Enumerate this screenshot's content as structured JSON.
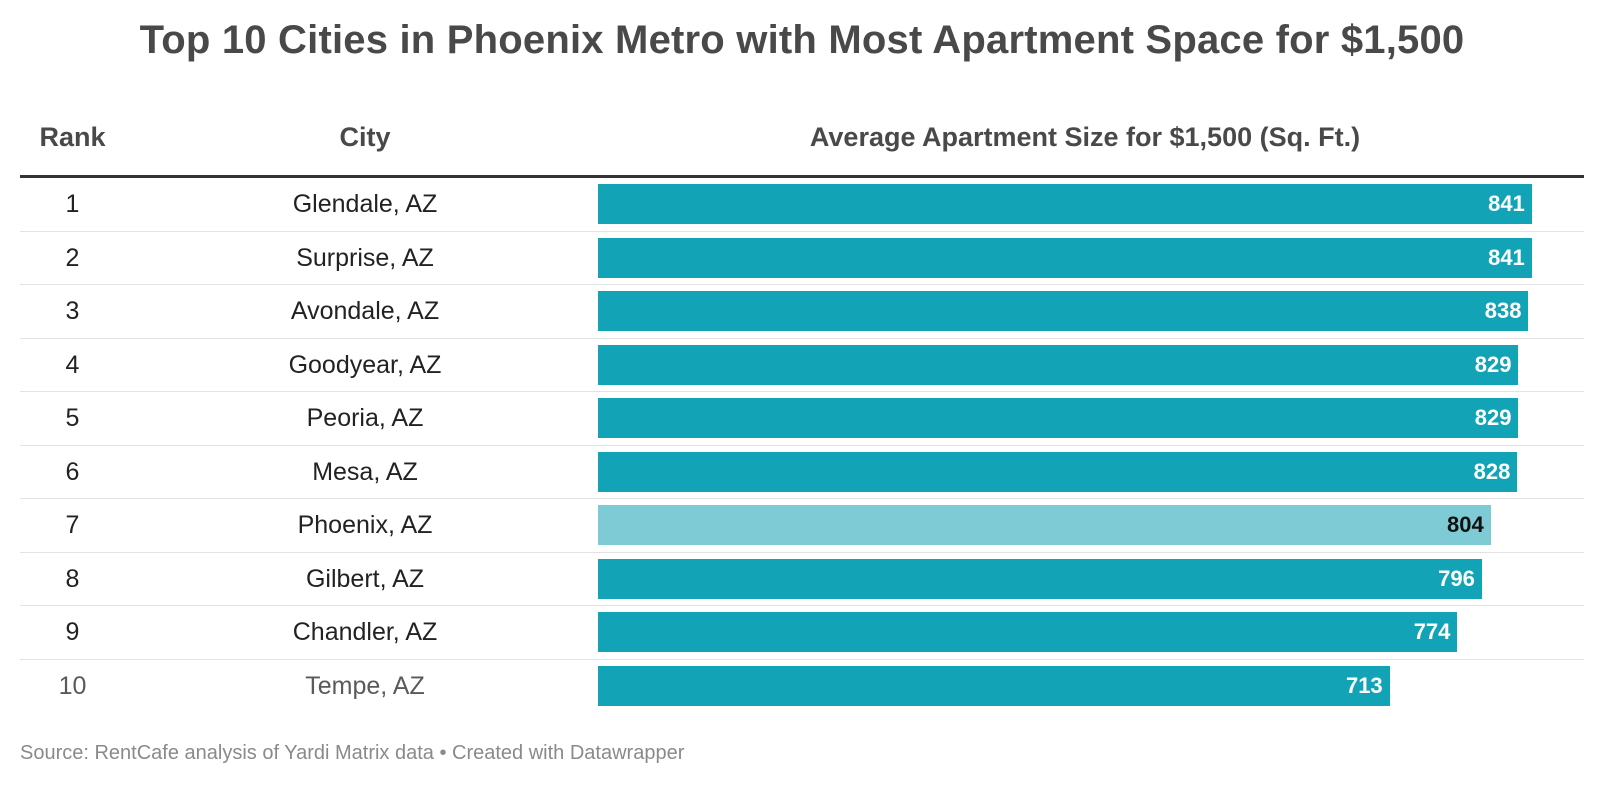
{
  "title": "Top 10 Cities in Phoenix Metro with Most Apartment Space for $1,500",
  "headers": {
    "rank": "Rank",
    "city": "City",
    "bar": "Average Apartment Size for $1,500 (Sq. Ft.)"
  },
  "source": "Source: RentCafe analysis of Yardi Matrix data • Created with Datawrapper",
  "colors": {
    "bar": "#12a4b6",
    "highlight": "#7ecbd5"
  },
  "chart_data": {
    "type": "bar",
    "title": "Top 10 Cities in Phoenix Metro with Most Apartment Space for $1,500",
    "xlabel": "Average Apartment Size for $1,500 (Sq. Ft.)",
    "ylabel": "City",
    "xlim": [
      0,
      870
    ],
    "ranks": [
      "1",
      "2",
      "3",
      "4",
      "5",
      "6",
      "7",
      "8",
      "9",
      "10"
    ],
    "categories": [
      "Glendale, AZ",
      "Surprise, AZ",
      "Avondale, AZ",
      "Goodyear, AZ",
      "Peoria, AZ",
      "Mesa, AZ",
      "Phoenix, AZ",
      "Gilbert, AZ",
      "Chandler, AZ",
      "Tempe, AZ"
    ],
    "values": [
      841,
      841,
      838,
      829,
      829,
      828,
      804,
      796,
      774,
      713
    ],
    "highlighted": "Phoenix, AZ"
  }
}
